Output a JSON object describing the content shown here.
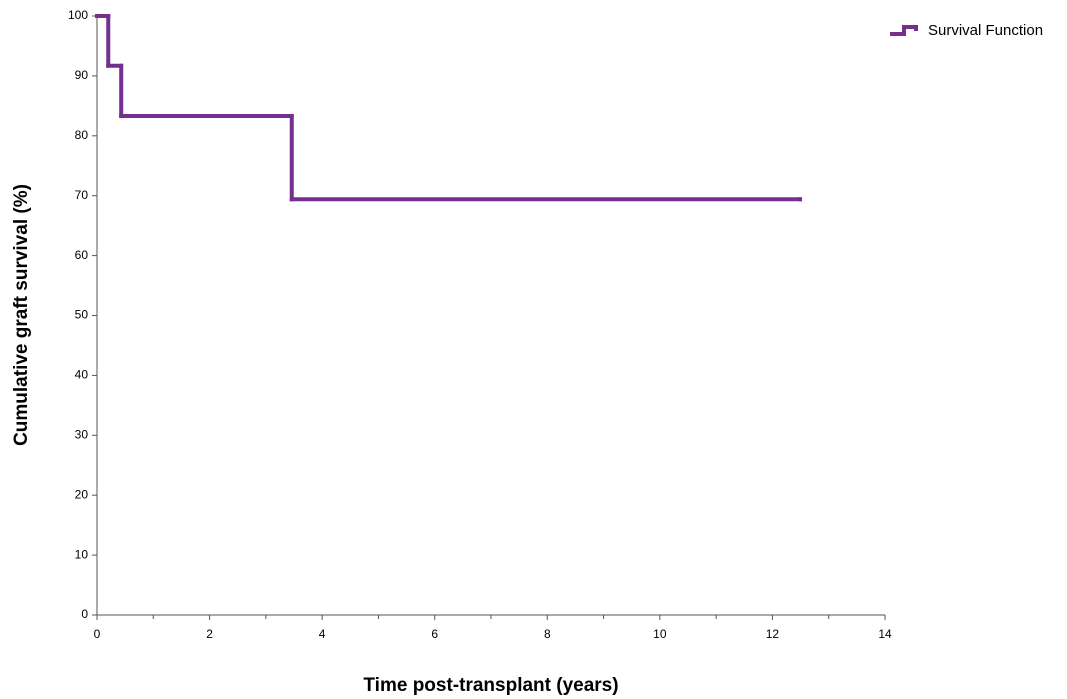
{
  "chart_data": {
    "type": "step",
    "x_label": "Time post-transplant (years)",
    "y_label": "Cumulative graft survival (%)",
    "series": [
      {
        "name": "Survival Function",
        "color": "#73308f",
        "x": [
          0,
          0.2,
          0.43,
          3.46,
          12.49
        ],
        "values": [
          100,
          91.7,
          83.3,
          69.4,
          69.4
        ]
      }
    ],
    "xlim": [
      0,
      14
    ],
    "xticks": [
      0,
      2,
      4,
      6,
      8,
      10,
      12,
      14
    ],
    "xminorticks": [
      1,
      3,
      5,
      7,
      9,
      11,
      13
    ],
    "ylim": [
      0,
      100
    ],
    "yticks": [
      0,
      10,
      20,
      30,
      40,
      50,
      60,
      70,
      80,
      90,
      100
    ],
    "grid": false,
    "legend": "top-right"
  }
}
